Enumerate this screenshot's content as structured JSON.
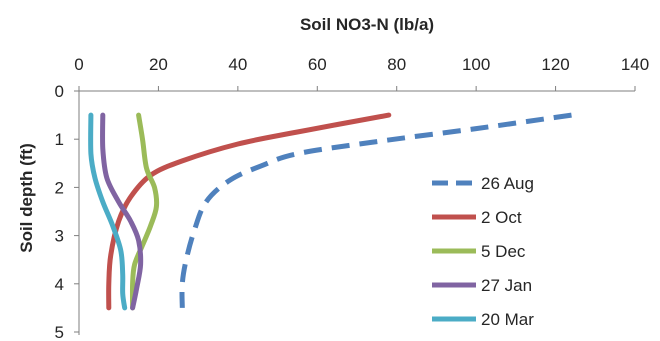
{
  "chart_data": {
    "type": "line",
    "title": "",
    "xlabel": "Soil NO3-N (lb/a)",
    "ylabel": "Soil depth (ft)",
    "xlim": [
      0,
      140
    ],
    "ylim": [
      0,
      5
    ],
    "x_ticks": [
      "0",
      "20",
      "40",
      "60",
      "80",
      "100",
      "120",
      "140"
    ],
    "y_ticks": [
      "0",
      "1",
      "2",
      "3",
      "4",
      "5"
    ],
    "x_axis_position": "top",
    "y_axis_inverted": true,
    "grid": false,
    "legend_position": "right",
    "series": [
      {
        "name": "26 Aug",
        "color": "#4F81BD",
        "dashed": true,
        "points": [
          [
            124,
            0.5
          ],
          [
            100,
            0.78
          ],
          [
            75,
            1.05
          ],
          [
            55,
            1.3
          ],
          [
            46,
            1.55
          ],
          [
            38,
            1.85
          ],
          [
            32,
            2.3
          ],
          [
            29,
            2.9
          ],
          [
            27,
            3.5
          ],
          [
            26,
            4.0
          ],
          [
            26,
            4.5
          ]
        ]
      },
      {
        "name": "2 Oct",
        "color": "#C0504D",
        "dashed": false,
        "points": [
          [
            78,
            0.5
          ],
          [
            55,
            0.85
          ],
          [
            40,
            1.1
          ],
          [
            26,
            1.45
          ],
          [
            18,
            1.75
          ],
          [
            13,
            2.2
          ],
          [
            10,
            2.7
          ],
          [
            8,
            3.4
          ],
          [
            7.5,
            4.0
          ],
          [
            7.5,
            4.5
          ]
        ]
      },
      {
        "name": "5 Dec",
        "color": "#9BBB59",
        "dashed": false,
        "points": [
          [
            15,
            0.5
          ],
          [
            16,
            1.0
          ],
          [
            17,
            1.6
          ],
          [
            19,
            2.0
          ],
          [
            19.5,
            2.4
          ],
          [
            18,
            2.8
          ],
          [
            16,
            3.2
          ],
          [
            14,
            3.6
          ],
          [
            13.5,
            4.0
          ],
          [
            13.5,
            4.5
          ]
        ]
      },
      {
        "name": "27 Jan",
        "color": "#8064A2",
        "dashed": false,
        "points": [
          [
            6,
            0.5
          ],
          [
            6,
            1.2
          ],
          [
            7,
            1.8
          ],
          [
            10,
            2.3
          ],
          [
            13,
            2.7
          ],
          [
            15,
            3.1
          ],
          [
            15.5,
            3.6
          ],
          [
            14.5,
            4.1
          ],
          [
            13.5,
            4.5
          ]
        ]
      },
      {
        "name": "20 Mar",
        "color": "#4BACC6",
        "dashed": false,
        "points": [
          [
            3,
            0.5
          ],
          [
            3,
            1.3
          ],
          [
            4,
            1.8
          ],
          [
            6,
            2.3
          ],
          [
            8.5,
            2.8
          ],
          [
            10.5,
            3.3
          ],
          [
            11,
            3.8
          ],
          [
            11,
            4.2
          ],
          [
            11.5,
            4.5
          ]
        ]
      }
    ]
  }
}
